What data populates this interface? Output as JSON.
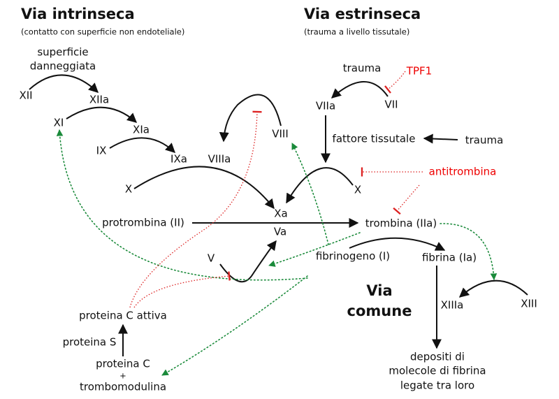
{
  "headers": {
    "intrinsic": {
      "title": "Via intrinseca",
      "subtitle": "(contatto con superficie non endoteliale)"
    },
    "extrinsic": {
      "title": "Via estrinseca",
      "subtitle": "(trauma a livello tissutale)"
    },
    "common": [
      "Via",
      "comune"
    ]
  },
  "nodes": {
    "surface": [
      "superficie",
      "danneggiata"
    ],
    "XII": "XII",
    "XIIa": "XIIa",
    "XI": "XI",
    "XIa": "XIa",
    "IX": "IX",
    "IXa": "IXa",
    "VIIIa": "VIIIa",
    "VIII": "VIII",
    "X_left": "X",
    "Xa": "Xa",
    "Va": "Va",
    "prothrombin": "protrombina (II)",
    "thrombin": "trombina (IIa)",
    "V": "V",
    "fibrinogen": "fibrinogeno (I)",
    "fibrin": "fibrina (Ia)",
    "XIIIa": "XIIIa",
    "XIII": "XIII",
    "protein_C_active": "proteina C attiva",
    "protein_S": "proteina S",
    "protein_C": [
      "proteina C",
      "+",
      "trombomodulina"
    ],
    "deposits": [
      "depositi di",
      "molecole di fibrina",
      "legate tra loro"
    ],
    "trauma_top": "trauma",
    "TPF1": "TPF1",
    "VIIa": "VIIa",
    "VII": "VII",
    "tissue_factor": "fattore tissutale",
    "trauma_right": "trauma",
    "antithrombin": "antitrombina",
    "X_right": "X"
  }
}
